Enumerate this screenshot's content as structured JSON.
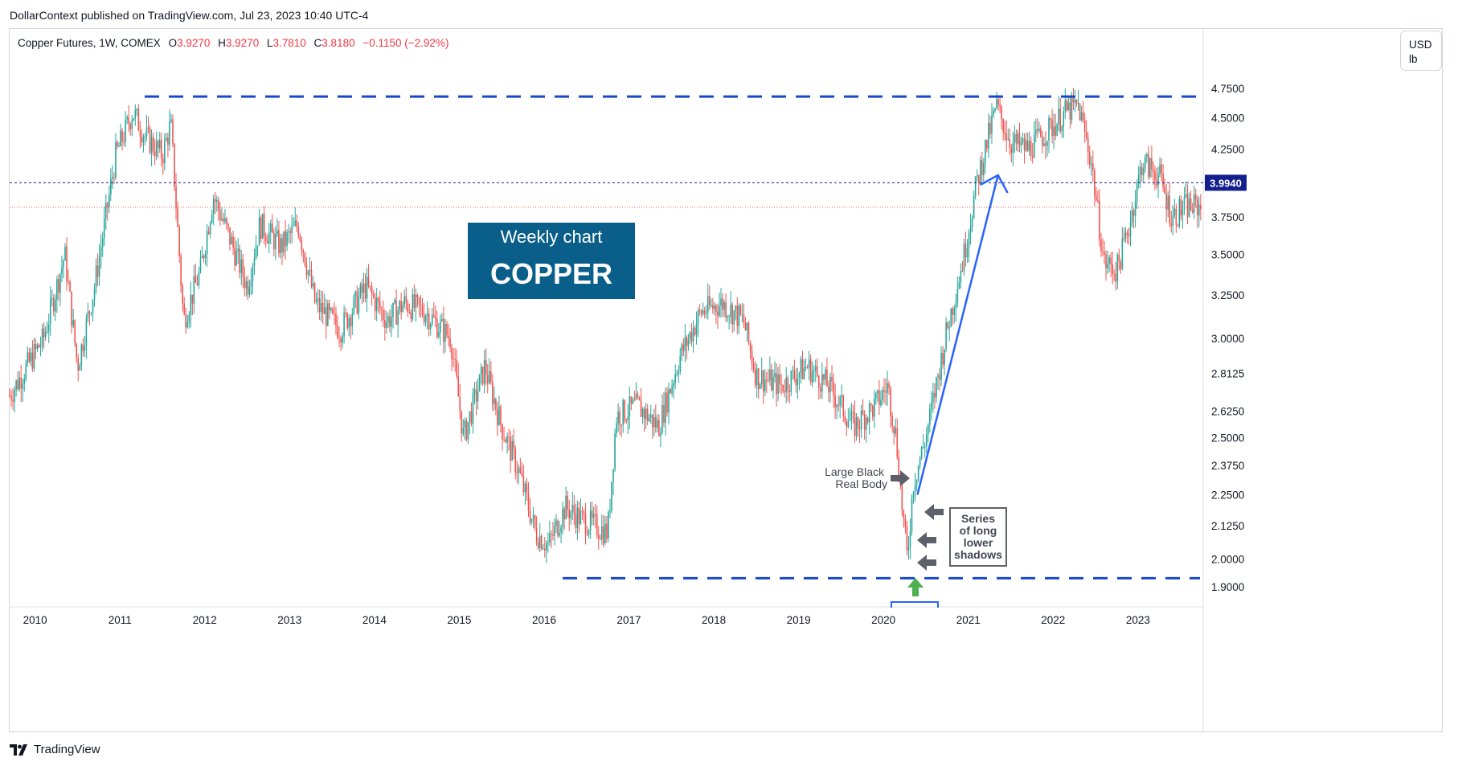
{
  "header": {
    "published_by": "DollarContext published on TradingView.com, Jul 23, 2023 10:40 UTC-4"
  },
  "legend": {
    "symbol": "Copper Futures, 1W, COMEX",
    "open_label": "O",
    "open": "3.9270",
    "high_label": "H",
    "high": "3.9270",
    "low_label": "L",
    "low": "3.7810",
    "close_label": "C",
    "close": "3.8180",
    "change": "−0.1150 (−2.92%)"
  },
  "currency": {
    "line1": "USD",
    "line2": "lb"
  },
  "footer": {
    "brand": "TradingView"
  },
  "colors": {
    "up": "#26a69a",
    "down": "#ef5350",
    "support_resistance": "#1848cc",
    "arrow_blue": "#2962ff",
    "price_tag": "#131f8c",
    "title_box": "#0a5f8a",
    "marker_grey": "#5d606b",
    "marker_green": "#4caf50"
  },
  "chart_data": {
    "type": "candlestick",
    "title": "",
    "scale": "log",
    "x_range": [
      2009.7,
      2023.75
    ],
    "y_range": [
      1.85,
      5.1
    ],
    "y_ticks": [
      "4.7500",
      "4.5000",
      "4.2500",
      "3.7500",
      "3.5000",
      "3.2500",
      "3.0000",
      "2.8125",
      "2.6250",
      "2.5000",
      "2.3750",
      "2.2500",
      "2.1250",
      "2.0000",
      "1.9000"
    ],
    "x_ticks": [
      "2010",
      "2011",
      "2012",
      "2013",
      "2014",
      "2015",
      "2016",
      "2017",
      "2018",
      "2019",
      "2020",
      "2021",
      "2022",
      "2023"
    ],
    "current_price": "3.9940",
    "anchors": [
      [
        2009.7,
        2.7
      ],
      [
        2010.1,
        3.0
      ],
      [
        2010.35,
        3.5
      ],
      [
        2010.5,
        2.85
      ],
      [
        2010.7,
        3.3
      ],
      [
        2010.95,
        4.2
      ],
      [
        2011.15,
        4.55
      ],
      [
        2011.3,
        4.35
      ],
      [
        2011.5,
        4.2
      ],
      [
        2011.6,
        4.45
      ],
      [
        2011.75,
        3.1
      ],
      [
        2011.95,
        3.4
      ],
      [
        2012.1,
        3.9
      ],
      [
        2012.3,
        3.6
      ],
      [
        2012.5,
        3.3
      ],
      [
        2012.65,
        3.7
      ],
      [
        2012.9,
        3.55
      ],
      [
        2013.1,
        3.7
      ],
      [
        2013.3,
        3.2
      ],
      [
        2013.6,
        3.05
      ],
      [
        2013.9,
        3.3
      ],
      [
        2014.15,
        3.1
      ],
      [
        2014.35,
        3.2
      ],
      [
        2014.6,
        3.15
      ],
      [
        2014.9,
        3.0
      ],
      [
        2015.05,
        2.5
      ],
      [
        2015.3,
        2.85
      ],
      [
        2015.5,
        2.55
      ],
      [
        2015.7,
        2.35
      ],
      [
        2015.9,
        2.1
      ],
      [
        2016.05,
        2.05
      ],
      [
        2016.25,
        2.2
      ],
      [
        2016.45,
        2.15
      ],
      [
        2016.75,
        2.1
      ],
      [
        2016.85,
        2.6
      ],
      [
        2017.1,
        2.65
      ],
      [
        2017.35,
        2.55
      ],
      [
        2017.6,
        2.9
      ],
      [
        2017.85,
        3.15
      ],
      [
        2018.1,
        3.2
      ],
      [
        2018.35,
        3.1
      ],
      [
        2018.5,
        2.8
      ],
      [
        2018.8,
        2.75
      ],
      [
        2019.1,
        2.85
      ],
      [
        2019.35,
        2.75
      ],
      [
        2019.65,
        2.55
      ],
      [
        2019.9,
        2.65
      ],
      [
        2020.05,
        2.75
      ],
      [
        2020.15,
        2.5
      ],
      [
        2020.22,
        2.2
      ],
      [
        2020.28,
        2.0
      ],
      [
        2020.35,
        2.3
      ],
      [
        2020.5,
        2.5
      ],
      [
        2020.75,
        3.05
      ],
      [
        2020.95,
        3.5
      ],
      [
        2021.1,
        4.0
      ],
      [
        2021.33,
        4.6
      ],
      [
        2021.5,
        4.3
      ],
      [
        2021.7,
        4.25
      ],
      [
        2021.95,
        4.4
      ],
      [
        2022.15,
        4.55
      ],
      [
        2022.3,
        4.6
      ],
      [
        2022.45,
        4.15
      ],
      [
        2022.6,
        3.45
      ],
      [
        2022.75,
        3.4
      ],
      [
        2022.9,
        3.7
      ],
      [
        2023.05,
        4.15
      ],
      [
        2023.25,
        4.05
      ],
      [
        2023.4,
        3.75
      ],
      [
        2023.55,
        3.82
      ]
    ],
    "lines": {
      "resistance": 4.68,
      "support": 1.93,
      "current_price_line": 3.994,
      "last_close_line": 3.818,
      "trend_arrow": {
        "from": [
          2020.4,
          2.25
        ],
        "to": [
          2021.35,
          4.05
        ]
      }
    },
    "annotations": {
      "title_top": "Weekly chart",
      "title_main": "COPPER",
      "large_black_line1": "Large Black",
      "large_black_line2": "Real Body",
      "series_line1": "Series",
      "series_line2": "of long",
      "series_line3": "lower",
      "series_line4": "shadows"
    }
  }
}
